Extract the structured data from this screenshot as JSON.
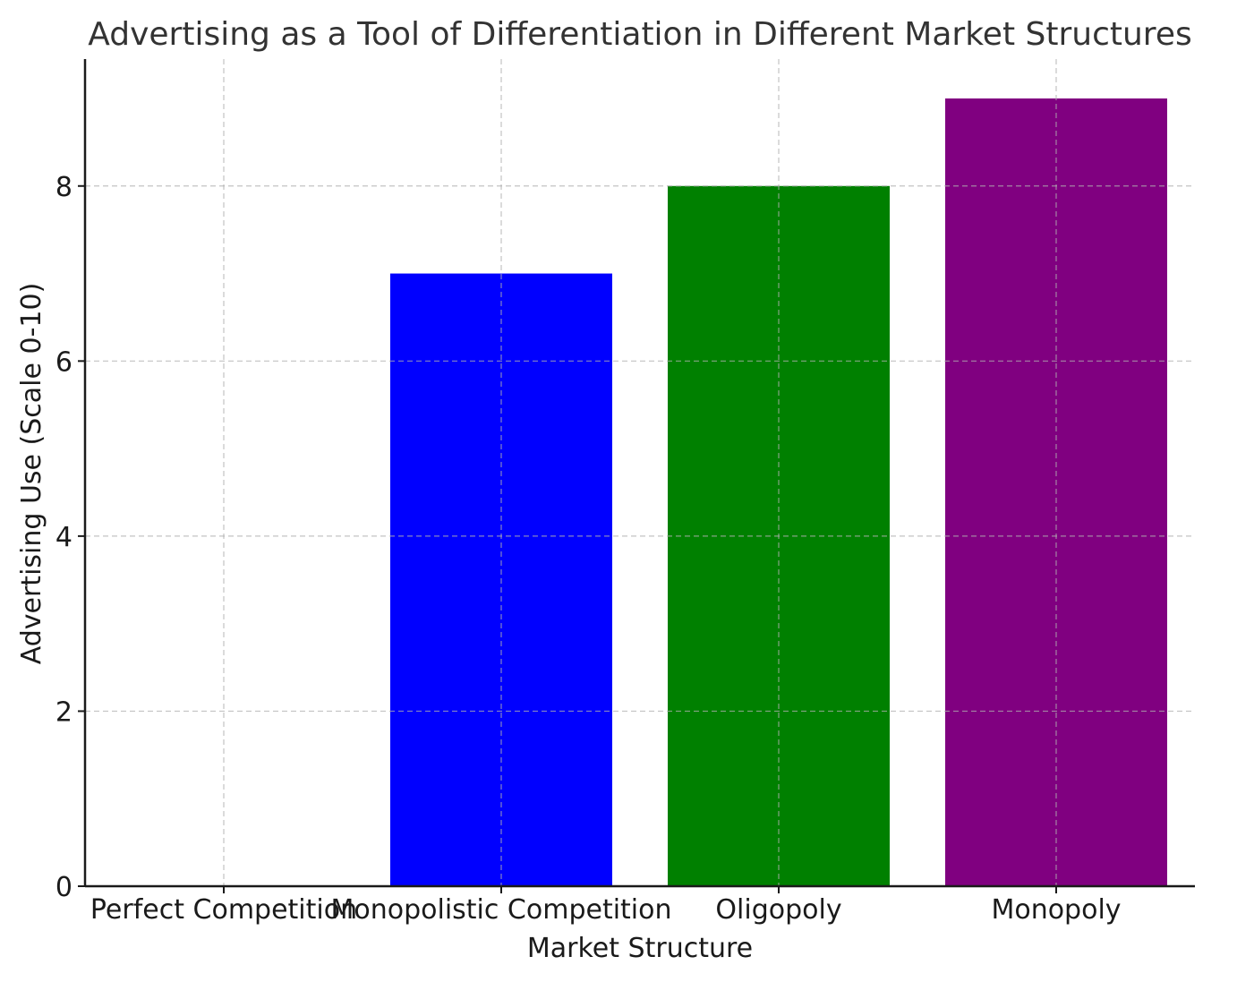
{
  "chart_data": {
    "type": "bar",
    "title": "Advertising as a Tool of Differentiation in Different Market Structures",
    "xlabel": "Market Structure",
    "ylabel": "Advertising Use (Scale 0-10)",
    "categories": [
      "Perfect Competition",
      "Monopolistic Competition",
      "Oligopoly",
      "Monopoly"
    ],
    "values": [
      0,
      7,
      8,
      9
    ],
    "colors": [
      "#ffffff",
      "#0000ff",
      "#008000",
      "#800080"
    ],
    "ylim": [
      0,
      9.45
    ],
    "yticks": [
      0,
      2,
      4,
      6,
      8
    ],
    "ytick_labels": [
      "0",
      "2",
      "4",
      "6",
      "8"
    ],
    "grid": true
  }
}
